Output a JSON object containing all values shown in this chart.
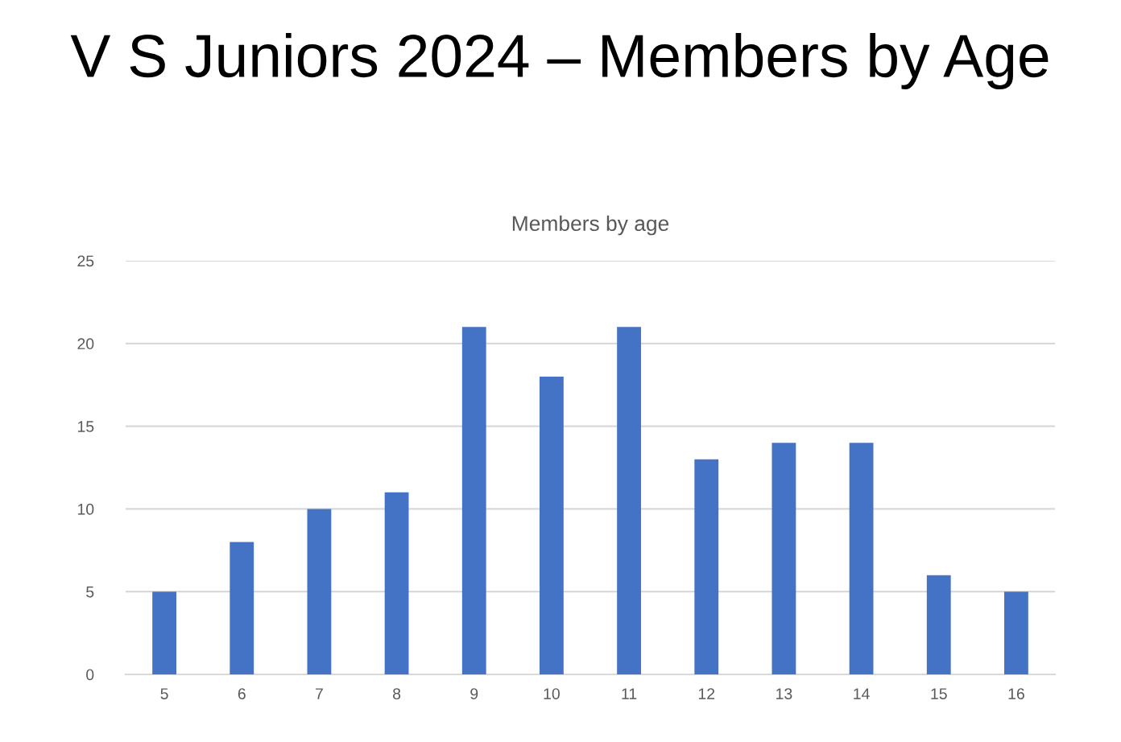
{
  "chart_data": {
    "type": "bar",
    "title": "V S Juniors 2024 – Members by Age",
    "subtitle": "Members by age",
    "categories": [
      "5",
      "6",
      "7",
      "8",
      "9",
      "10",
      "11",
      "12",
      "13",
      "14",
      "15",
      "16"
    ],
    "values": [
      5,
      8,
      10,
      11,
      21,
      18,
      21,
      13,
      14,
      14,
      6,
      5
    ],
    "color": "#4472c4",
    "ylim": [
      0,
      25
    ],
    "yticks": [
      0,
      5,
      10,
      15,
      20,
      25
    ],
    "grid": "y"
  }
}
